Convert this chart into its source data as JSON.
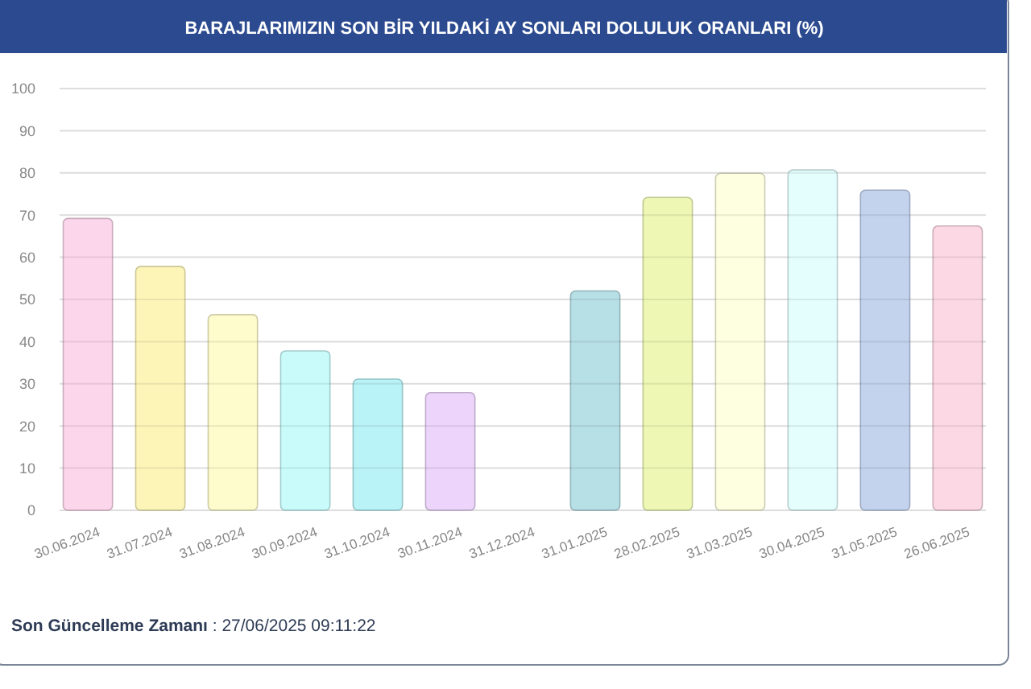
{
  "chart_data": {
    "type": "bar",
    "title": "BARAJLARIMIZIN SON BİR YILDAKİ AY SONLARI DOLULUK ORANLARI (%)",
    "categories": [
      "30.06.2024",
      "31.07.2024",
      "31.08.2024",
      "30.09.2024",
      "31.10.2024",
      "30.11.2024",
      "31.12.2024",
      "31.01.2025",
      "28.02.2025",
      "31.03.2025",
      "30.04.2025",
      "31.05.2025",
      "26.06.2025"
    ],
    "values": [
      69.2,
      57.8,
      46.4,
      37.8,
      31.1,
      27.9,
      null,
      52.0,
      74.2,
      79.9,
      80.7,
      75.9,
      67.4
    ],
    "colors": [
      "#fcd6ea",
      "#fdf5b8",
      "#fefccc",
      "#c9fbfb",
      "#b9f3f7",
      "#ecd4fa",
      null,
      "#b7dfe6",
      "#eef8b4",
      "#fefee0",
      "#e4fefd",
      "#c3d3ee",
      "#fbd8e3"
    ],
    "ylim": [
      0,
      100
    ],
    "yticks": [
      0,
      10,
      20,
      30,
      40,
      50,
      60,
      70,
      80,
      90,
      100
    ],
    "grid": "y",
    "annotations": [
      "Son Güncelleme Zamanı : 27/06/2025 09:11:22"
    ]
  }
}
